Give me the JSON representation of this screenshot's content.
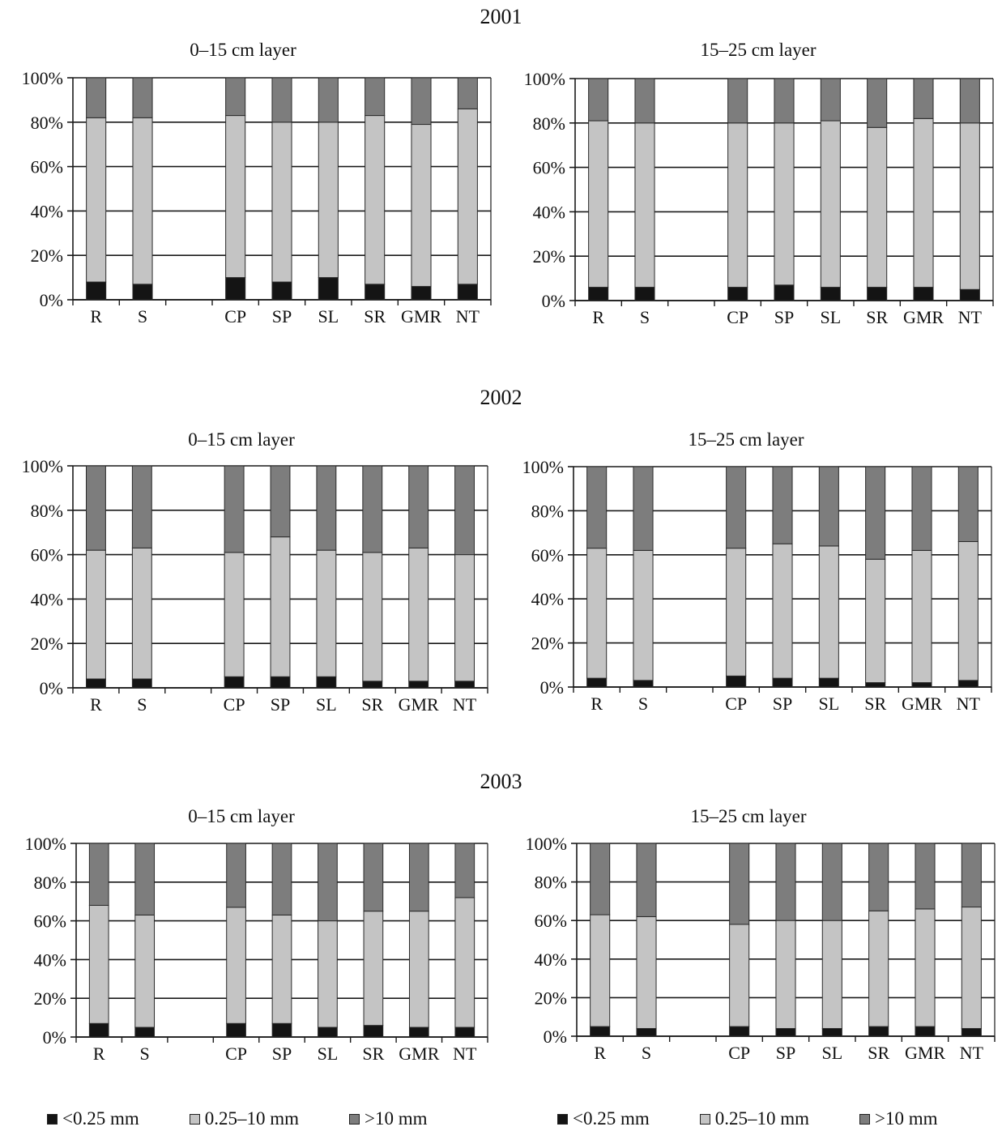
{
  "years": [
    "2001",
    "2002",
    "2003"
  ],
  "colors": {
    "fine": "#141414",
    "medium": "#c4c4c4",
    "coarse": "#7d7d7d",
    "axis": "#1a1a1a"
  },
  "legend": [
    {
      "label": "<0.25 mm",
      "color": "#141414"
    },
    {
      "label": "0.25–10 mm",
      "color": "#c4c4c4"
    },
    {
      "label": ">10 mm",
      "color": "#7d7d7d"
    }
  ],
  "chart_data": [
    {
      "type": "bar",
      "stacked": true,
      "percent": true,
      "year": "2001",
      "title": "0–15 cm layer",
      "categories": [
        "R",
        "S",
        "",
        "CP",
        "SP",
        "SL",
        "SR",
        "GMR",
        "NT"
      ],
      "ylim": [
        0,
        100
      ],
      "yticks": [
        "0%",
        "20%",
        "40%",
        "60%",
        "80%",
        "100%"
      ],
      "series": [
        {
          "name": "<0.25 mm",
          "values": [
            8,
            7,
            null,
            10,
            8,
            10,
            7,
            6,
            7
          ]
        },
        {
          "name": "0.25–10 mm",
          "values": [
            74,
            75,
            null,
            73,
            72,
            70,
            76,
            73,
            79
          ]
        },
        {
          "name": ">10 mm",
          "values": [
            18,
            18,
            null,
            17,
            20,
            20,
            17,
            21,
            14
          ]
        }
      ]
    },
    {
      "type": "bar",
      "stacked": true,
      "percent": true,
      "year": "2001",
      "title": "15–25 cm layer",
      "categories": [
        "R",
        "S",
        "",
        "CP",
        "SP",
        "SL",
        "SR",
        "GMR",
        "NT"
      ],
      "ylim": [
        0,
        100
      ],
      "yticks": [
        "0%",
        "20%",
        "40%",
        "60%",
        "80%",
        "100%"
      ],
      "series": [
        {
          "name": "<0.25 mm",
          "values": [
            6,
            6,
            null,
            6,
            7,
            6,
            6,
            6,
            5
          ]
        },
        {
          "name": "0.25–10 mm",
          "values": [
            75,
            74,
            null,
            74,
            73,
            75,
            72,
            76,
            75
          ]
        },
        {
          "name": ">10 mm",
          "values": [
            19,
            20,
            null,
            20,
            20,
            19,
            22,
            18,
            20
          ]
        }
      ]
    },
    {
      "type": "bar",
      "stacked": true,
      "percent": true,
      "year": "2002",
      "title": "0–15 cm layer",
      "categories": [
        "R",
        "S",
        "",
        "CP",
        "SP",
        "SL",
        "SR",
        "GMR",
        "NT"
      ],
      "ylim": [
        0,
        100
      ],
      "yticks": [
        "0%",
        "20%",
        "40%",
        "60%",
        "80%",
        "100%"
      ],
      "series": [
        {
          "name": "<0.25 mm",
          "values": [
            4,
            4,
            null,
            5,
            5,
            5,
            3,
            3,
            3
          ]
        },
        {
          "name": "0.25–10 mm",
          "values": [
            58,
            59,
            null,
            56,
            63,
            57,
            58,
            60,
            57
          ]
        },
        {
          "name": ">10 mm",
          "values": [
            38,
            37,
            null,
            39,
            32,
            38,
            39,
            37,
            40
          ]
        }
      ]
    },
    {
      "type": "bar",
      "stacked": true,
      "percent": true,
      "year": "2002",
      "title": "15–25 cm layer",
      "categories": [
        "R",
        "S",
        "",
        "CP",
        "SP",
        "SL",
        "SR",
        "GMR",
        "NT"
      ],
      "ylim": [
        0,
        100
      ],
      "yticks": [
        "0%",
        "20%",
        "40%",
        "60%",
        "80%",
        "100%"
      ],
      "series": [
        {
          "name": "<0.25 mm",
          "values": [
            4,
            3,
            null,
            5,
            4,
            4,
            2,
            2,
            3
          ]
        },
        {
          "name": "0.25–10 mm",
          "values": [
            59,
            59,
            null,
            58,
            61,
            60,
            56,
            60,
            63
          ]
        },
        {
          "name": ">10 mm",
          "values": [
            37,
            38,
            null,
            37,
            35,
            36,
            42,
            38,
            34
          ]
        }
      ]
    },
    {
      "type": "bar",
      "stacked": true,
      "percent": true,
      "year": "2003",
      "title": "0–15 cm layer",
      "categories": [
        "R",
        "S",
        "",
        "CP",
        "SP",
        "SL",
        "SR",
        "GMR",
        "NT"
      ],
      "ylim": [
        0,
        100
      ],
      "yticks": [
        "0%",
        "20%",
        "40%",
        "60%",
        "80%",
        "100%"
      ],
      "series": [
        {
          "name": "<0.25 mm",
          "values": [
            7,
            5,
            null,
            7,
            7,
            5,
            6,
            5,
            5
          ]
        },
        {
          "name": "0.25–10 mm",
          "values": [
            61,
            58,
            null,
            60,
            56,
            55,
            59,
            60,
            67
          ]
        },
        {
          "name": ">10 mm",
          "values": [
            32,
            37,
            null,
            33,
            37,
            40,
            35,
            35,
            28
          ]
        }
      ]
    },
    {
      "type": "bar",
      "stacked": true,
      "percent": true,
      "year": "2003",
      "title": "15–25 cm layer",
      "categories": [
        "R",
        "S",
        "",
        "CP",
        "SP",
        "SL",
        "SR",
        "GMR",
        "NT"
      ],
      "ylim": [
        0,
        100
      ],
      "yticks": [
        "0%",
        "20%",
        "40%",
        "60%",
        "80%",
        "100%"
      ],
      "series": [
        {
          "name": "<0.25 mm",
          "values": [
            5,
            4,
            null,
            5,
            4,
            4,
            5,
            5,
            4
          ]
        },
        {
          "name": "0.25–10 mm",
          "values": [
            58,
            58,
            null,
            53,
            56,
            56,
            60,
            61,
            63
          ]
        },
        {
          "name": ">10 mm",
          "values": [
            37,
            38,
            null,
            42,
            40,
            40,
            35,
            34,
            33
          ]
        }
      ]
    }
  ]
}
